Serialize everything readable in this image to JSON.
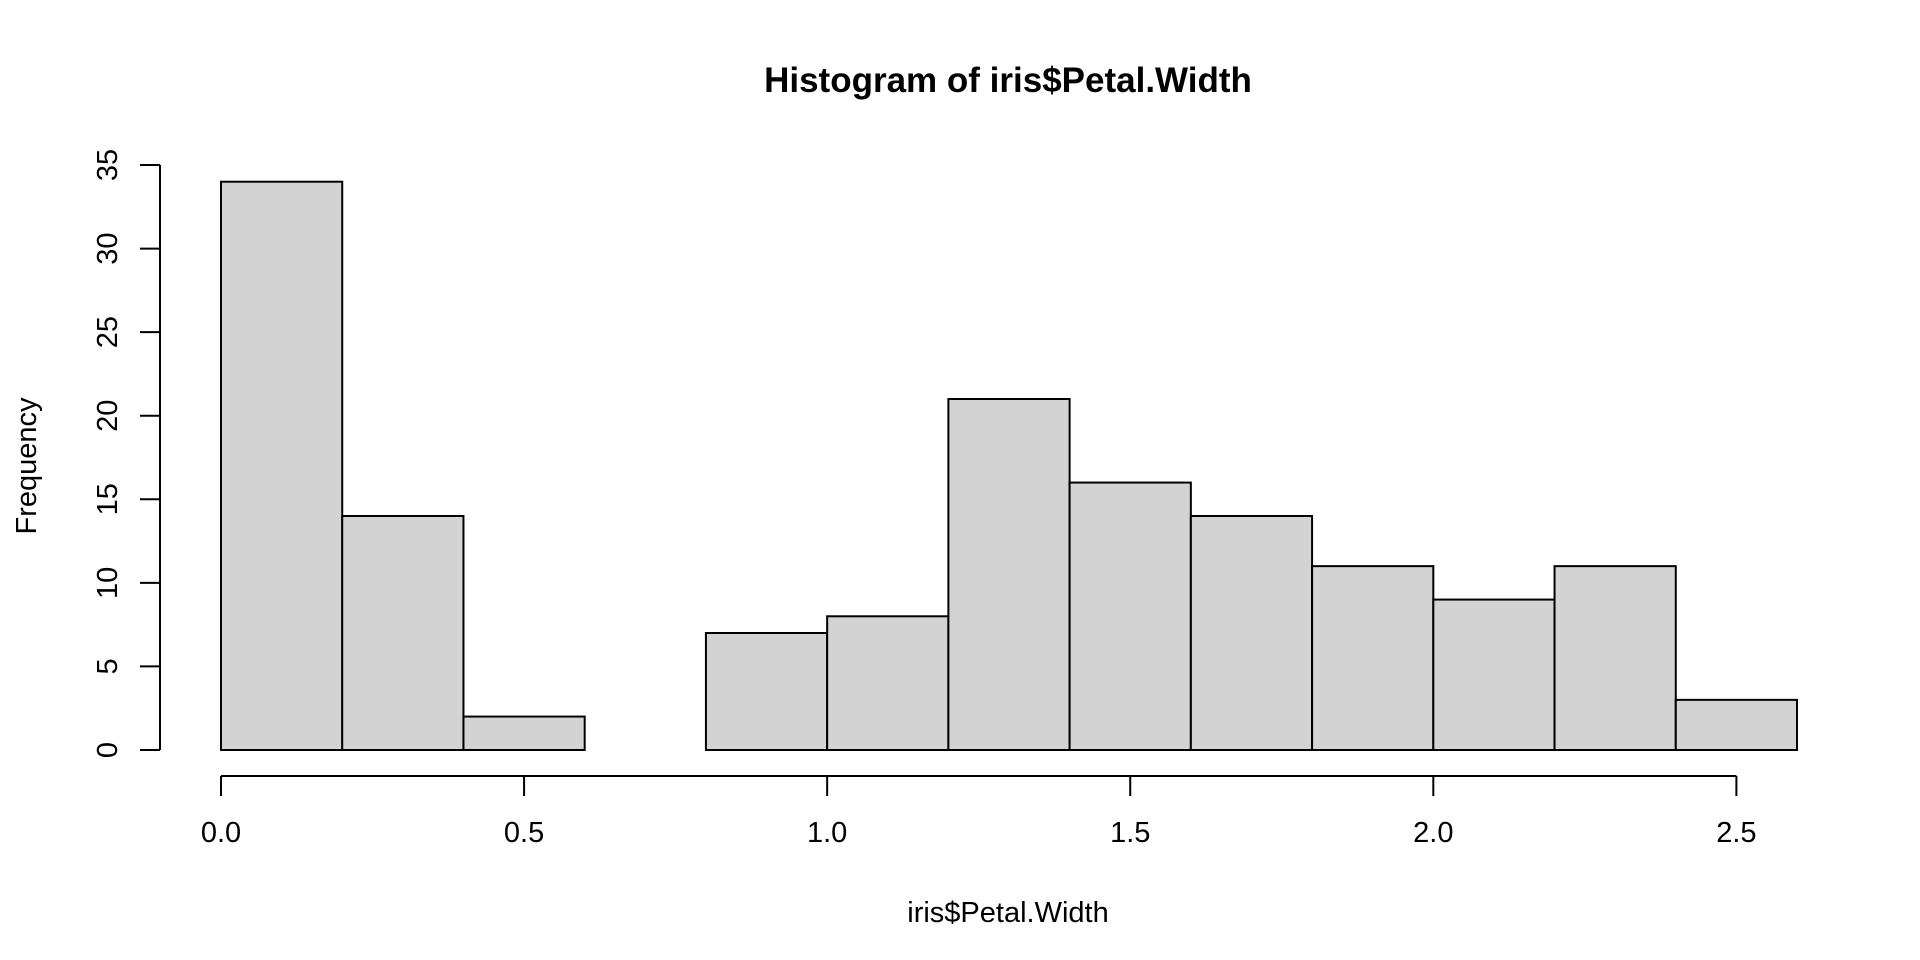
{
  "chart_data": {
    "type": "bar",
    "title": "Histogram of iris$Petal.Width",
    "xlabel": "iris$Petal.Width",
    "ylabel": "Frequency",
    "bins": [
      {
        "start": 0.0,
        "end": 0.2,
        "count": 34
      },
      {
        "start": 0.2,
        "end": 0.4,
        "count": 14
      },
      {
        "start": 0.4,
        "end": 0.6,
        "count": 2
      },
      {
        "start": 0.6,
        "end": 0.8,
        "count": 0
      },
      {
        "start": 0.8,
        "end": 1.0,
        "count": 7
      },
      {
        "start": 1.0,
        "end": 1.2,
        "count": 8
      },
      {
        "start": 1.2,
        "end": 1.4,
        "count": 21
      },
      {
        "start": 1.4,
        "end": 1.6,
        "count": 16
      },
      {
        "start": 1.6,
        "end": 1.8,
        "count": 14
      },
      {
        "start": 1.8,
        "end": 2.0,
        "count": 11
      },
      {
        "start": 2.0,
        "end": 2.2,
        "count": 9
      },
      {
        "start": 2.2,
        "end": 2.4,
        "count": 11
      },
      {
        "start": 2.4,
        "end": 2.6,
        "count": 3
      }
    ],
    "x_ticks": [
      {
        "value": 0.0,
        "label": "0.0"
      },
      {
        "value": 0.5,
        "label": "0.5"
      },
      {
        "value": 1.0,
        "label": "1.0"
      },
      {
        "value": 1.5,
        "label": "1.5"
      },
      {
        "value": 2.0,
        "label": "2.0"
      },
      {
        "value": 2.5,
        "label": "2.5"
      }
    ],
    "y_ticks": [
      {
        "value": 0,
        "label": "0"
      },
      {
        "value": 5,
        "label": "5"
      },
      {
        "value": 10,
        "label": "10"
      },
      {
        "value": 15,
        "label": "15"
      },
      {
        "value": 20,
        "label": "20"
      },
      {
        "value": 25,
        "label": "25"
      },
      {
        "value": 30,
        "label": "30"
      },
      {
        "value": 35,
        "label": "35"
      }
    ],
    "xlim": [
      0.0,
      2.6
    ],
    "ylim": [
      0,
      35
    ],
    "grid": false,
    "legend": "none",
    "colors": {
      "bar_fill": "#d3d3d3",
      "bar_stroke": "#000000",
      "axis": "#000000",
      "background": "#ffffff"
    }
  }
}
